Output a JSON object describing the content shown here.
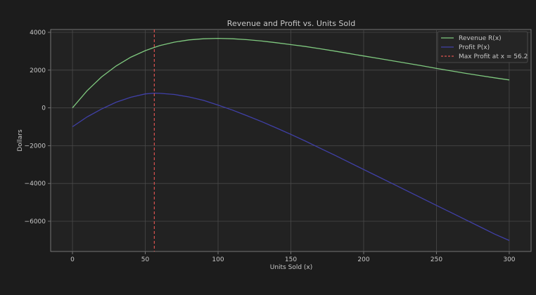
{
  "chart_data": {
    "type": "line",
    "title": "Revenue and Profit vs. Units Sold",
    "xlabel": "Units Sold (x)",
    "ylabel": "Dollars",
    "xlim": [
      -15,
      315
    ],
    "ylim": [
      -7600,
      4150
    ],
    "xticks": [
      0,
      50,
      100,
      150,
      200,
      250,
      300
    ],
    "yticks": [
      -6000,
      -4000,
      -2000,
      0,
      2000,
      4000
    ],
    "grid": true,
    "legend_position": "top-right",
    "series": [
      {
        "name": "Revenue R(x)",
        "color": "#7fc97f",
        "x": [
          0,
          10,
          20,
          30,
          40,
          50,
          56.2,
          60,
          70,
          80,
          90,
          100,
          110,
          120,
          130,
          140,
          150,
          160,
          170,
          180,
          190,
          200,
          210,
          220,
          230,
          240,
          250,
          260,
          270,
          280,
          290,
          300
        ],
        "y": [
          0,
          905,
          1640,
          2220,
          2680,
          3030,
          3200,
          3300,
          3480,
          3600,
          3660,
          3680,
          3660,
          3610,
          3540,
          3450,
          3350,
          3250,
          3130,
          3010,
          2880,
          2750,
          2620,
          2490,
          2360,
          2230,
          2090,
          1960,
          1830,
          1710,
          1590,
          1480
        ]
      },
      {
        "name": "Profit P(x)",
        "color": "#4040a8",
        "x": [
          0,
          10,
          20,
          30,
          40,
          50,
          56.2,
          60,
          70,
          80,
          90,
          100,
          110,
          120,
          130,
          140,
          150,
          160,
          170,
          180,
          190,
          200,
          210,
          220,
          230,
          240,
          250,
          260,
          270,
          280,
          290,
          300
        ],
        "y": [
          -1000,
          -480,
          -60,
          300,
          560,
          740,
          780,
          770,
          710,
          580,
          400,
          150,
          -120,
          -420,
          -730,
          -1060,
          -1400,
          -1760,
          -2130,
          -2500,
          -2880,
          -3260,
          -3640,
          -4020,
          -4400,
          -4780,
          -5160,
          -5540,
          -5920,
          -6300,
          -6680,
          -7020
        ]
      },
      {
        "name": "Max Profit at x = 56.2",
        "color": "#d9534f",
        "style": "dashed",
        "vline_x": 56.2
      }
    ]
  }
}
